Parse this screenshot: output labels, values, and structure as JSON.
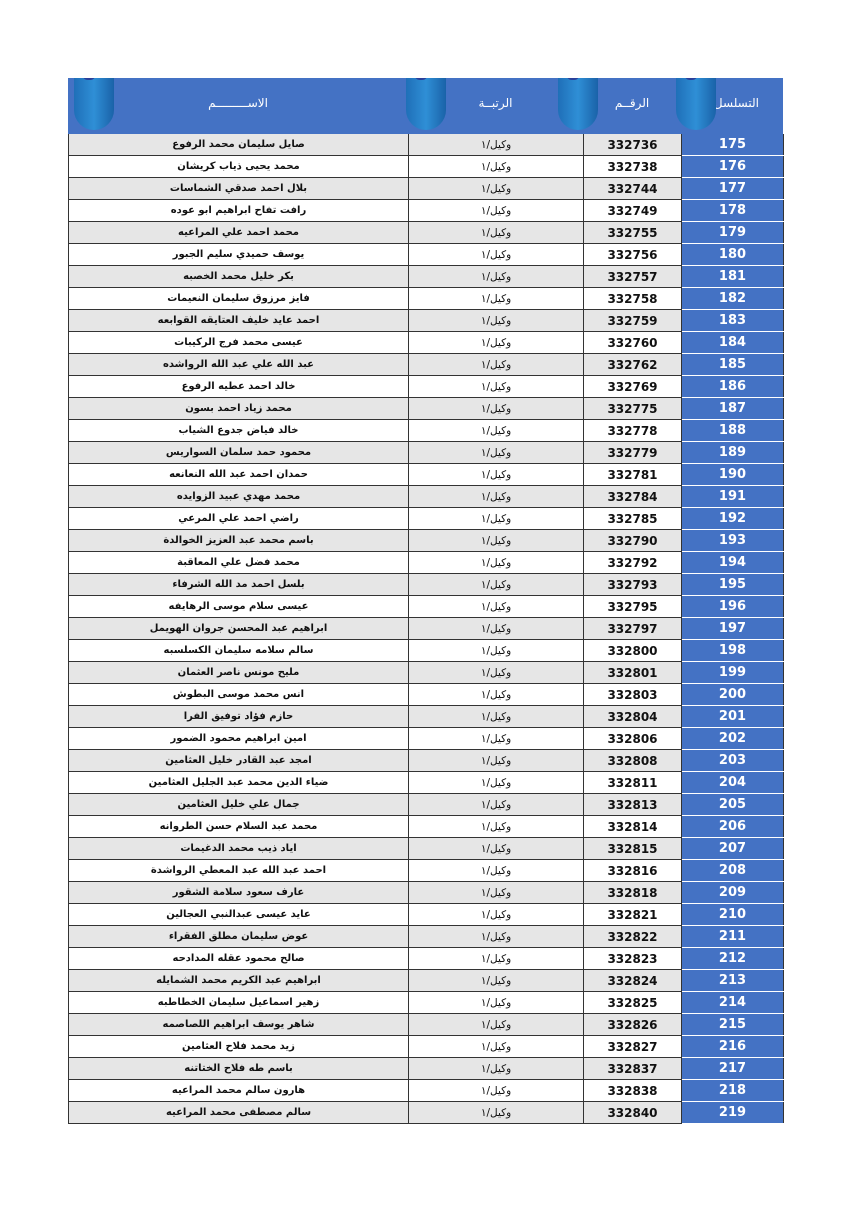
{
  "header": {
    "name": "الاســـــــــم",
    "rank": "الرتبــة",
    "id": "الرقــم",
    "serial": "التسلسل"
  },
  "colors": {
    "header": "#4472c4",
    "serial_column": "#4472c4",
    "alt_row": "#e6e6e6"
  },
  "rows": [
    {
      "serial": "175",
      "id": "332736",
      "rank": "وكيل/١",
      "name": "صايل سليمان محمد الرفوع"
    },
    {
      "serial": "176",
      "id": "332738",
      "rank": "وكيل/١",
      "name": "محمد يحيى ذياب كريشان"
    },
    {
      "serial": "177",
      "id": "332744",
      "rank": "وكيل/١",
      "name": "بلال احمد صدقي الشماسات"
    },
    {
      "serial": "178",
      "id": "332749",
      "rank": "وكيل/١",
      "name": "رافت تفاح ابراهيم ابو عوده"
    },
    {
      "serial": "179",
      "id": "332755",
      "rank": "وكيل/١",
      "name": "محمد احمد علي المراعيه"
    },
    {
      "serial": "180",
      "id": "332756",
      "rank": "وكيل/١",
      "name": "يوسف حميدي سليم الجبور"
    },
    {
      "serial": "181",
      "id": "332757",
      "rank": "وكيل/١",
      "name": "بكر خليل محمد الخصبه"
    },
    {
      "serial": "182",
      "id": "332758",
      "rank": "وكيل/١",
      "name": "فايز مرزوق سليمان النعيمات"
    },
    {
      "serial": "183",
      "id": "332759",
      "rank": "وكيل/١",
      "name": "احمد عايد خليف العتايقه القوابعه"
    },
    {
      "serial": "184",
      "id": "332760",
      "rank": "وكيل/١",
      "name": "عيسى محمد فرج الركيبات"
    },
    {
      "serial": "185",
      "id": "332762",
      "rank": "وكيل/١",
      "name": "عبد الله علي عبد الله الرواشده"
    },
    {
      "serial": "186",
      "id": "332769",
      "rank": "وكيل/١",
      "name": "خالد احمد عطيه الرفوع"
    },
    {
      "serial": "187",
      "id": "332775",
      "rank": "وكيل/١",
      "name": "محمد زياد احمد بسون"
    },
    {
      "serial": "188",
      "id": "332778",
      "rank": "وكيل/١",
      "name": "خالد فياض جدوع الشياب"
    },
    {
      "serial": "189",
      "id": "332779",
      "rank": "وكيل/١",
      "name": "محمود حمد سلمان السواريس"
    },
    {
      "serial": "190",
      "id": "332781",
      "rank": "وكيل/١",
      "name": "حمدان احمد عبد الله النعانعه"
    },
    {
      "serial": "191",
      "id": "332784",
      "rank": "وكيل/١",
      "name": "محمد مهدي عبيد الزوايده"
    },
    {
      "serial": "192",
      "id": "332785",
      "rank": "وكيل/١",
      "name": "راضي احمد علي المرعي"
    },
    {
      "serial": "193",
      "id": "332790",
      "rank": "وكيل/١",
      "name": "باسم محمد عبد العزيز الخوالدة"
    },
    {
      "serial": "194",
      "id": "332792",
      "rank": "وكيل/١",
      "name": "محمد فضل علي المعاقبة"
    },
    {
      "serial": "195",
      "id": "332793",
      "rank": "وكيل/١",
      "name": "بلسل احمد مد الله الشرفاء"
    },
    {
      "serial": "196",
      "id": "332795",
      "rank": "وكيل/١",
      "name": "عيسى سلام موسى الرهايفه"
    },
    {
      "serial": "197",
      "id": "332797",
      "rank": "وكيل/١",
      "name": "ابراهيم عبد المحسن جروان الهويمل"
    },
    {
      "serial": "198",
      "id": "332800",
      "rank": "وكيل/١",
      "name": "سالم سلامه سليمان الكسلسبه"
    },
    {
      "serial": "199",
      "id": "332801",
      "rank": "وكيل/١",
      "name": "مليح مونس ناصر العثمان"
    },
    {
      "serial": "200",
      "id": "332803",
      "rank": "وكيل/١",
      "name": "انس محمد موسى البطوش"
    },
    {
      "serial": "201",
      "id": "332804",
      "rank": "وكيل/١",
      "name": "حازم فؤاد توفيق الفرا"
    },
    {
      "serial": "202",
      "id": "332806",
      "rank": "وكيل/١",
      "name": "امين ابراهيم محمود الضمور"
    },
    {
      "serial": "203",
      "id": "332808",
      "rank": "وكيل/١",
      "name": "امجد عبد القادر خليل العثامين"
    },
    {
      "serial": "204",
      "id": "332811",
      "rank": "وكيل/١",
      "name": "ضياء الدين محمد عبد الجليل العثامين"
    },
    {
      "serial": "205",
      "id": "332813",
      "rank": "وكيل/١",
      "name": "جمال علي خليل العثامين"
    },
    {
      "serial": "206",
      "id": "332814",
      "rank": "وكيل/١",
      "name": "محمد عبد السلام حسن الطروانه"
    },
    {
      "serial": "207",
      "id": "332815",
      "rank": "وكيل/١",
      "name": "اياد ذيب محمد الدغيمات"
    },
    {
      "serial": "208",
      "id": "332816",
      "rank": "وكيل/١",
      "name": "احمد عبد الله عبد المعطي الرواشدة"
    },
    {
      "serial": "209",
      "id": "332818",
      "rank": "وكيل/١",
      "name": "عارف سعود سلامة الشقور"
    },
    {
      "serial": "210",
      "id": "332821",
      "rank": "وكيل/١",
      "name": "عايد عيسى عبدالنبي العجالين"
    },
    {
      "serial": "211",
      "id": "332822",
      "rank": "وكيل/١",
      "name": "عوض سليمان مطلق الفقراء"
    },
    {
      "serial": "212",
      "id": "332823",
      "rank": "وكيل/١",
      "name": "صالح محمود عقله المدادحه"
    },
    {
      "serial": "213",
      "id": "332824",
      "rank": "وكيل/١",
      "name": "ابراهيم عبد الكريم محمد الشمايله"
    },
    {
      "serial": "214",
      "id": "332825",
      "rank": "وكيل/١",
      "name": "زهير اسماعيل سليمان الخطاطبه"
    },
    {
      "serial": "215",
      "id": "332826",
      "rank": "وكيل/١",
      "name": "شاهر يوسف ابراهيم اللصاصمه"
    },
    {
      "serial": "216",
      "id": "332827",
      "rank": "وكيل/١",
      "name": "زيد محمد فلاح العثامين"
    },
    {
      "serial": "217",
      "id": "332837",
      "rank": "وكيل/١",
      "name": "باسم طه فلاح الختاتنه"
    },
    {
      "serial": "218",
      "id": "332838",
      "rank": "وكيل/١",
      "name": "هارون سالم محمد المراعيه"
    },
    {
      "serial": "219",
      "id": "332840",
      "rank": "وكيل/١",
      "name": "سالم مصطفى محمد المراعيه"
    }
  ]
}
